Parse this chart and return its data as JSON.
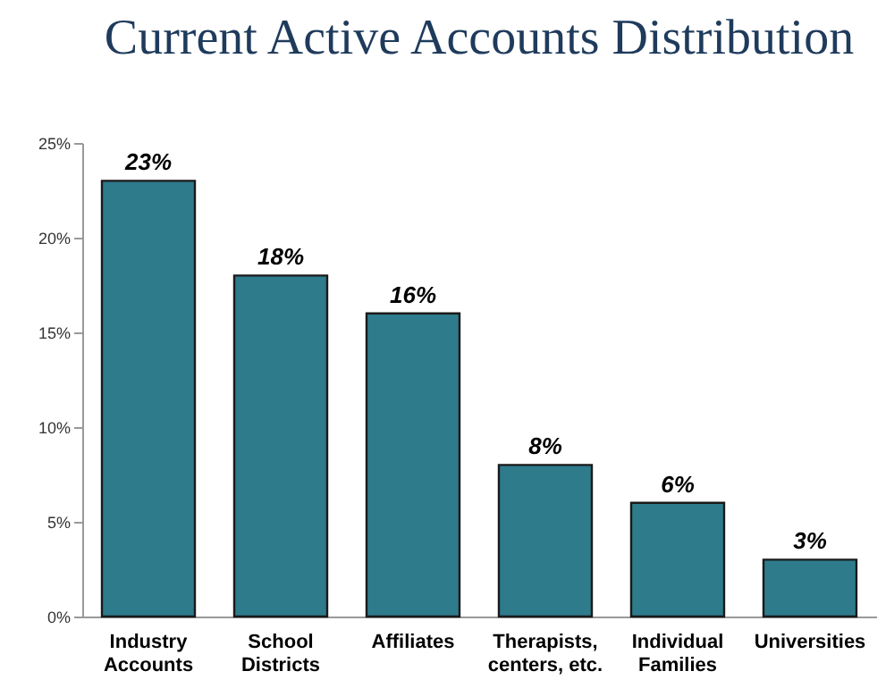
{
  "chart_data": {
    "type": "bar",
    "title": "Current Active Accounts Distribution",
    "categories": [
      "Industry\nAccounts",
      "School\nDistricts",
      "Affiliates",
      "Therapists,\ncenters, etc.",
      "Individual\nFamilies",
      "Universities"
    ],
    "values": [
      23,
      18,
      16,
      8,
      6,
      3
    ],
    "value_labels": [
      "23%",
      "18%",
      "16%",
      "8%",
      "6%",
      "3%"
    ],
    "color": "#2e7b8c",
    "ylim": [
      0,
      25
    ],
    "yticks": [
      {
        "value": 0,
        "label": "0%"
      },
      {
        "value": 5,
        "label": "5%"
      },
      {
        "value": 10,
        "label": "10%"
      },
      {
        "value": 15,
        "label": "15%"
      },
      {
        "value": 20,
        "label": "20%"
      },
      {
        "value": 25,
        "label": "25%"
      }
    ],
    "grid": false
  }
}
